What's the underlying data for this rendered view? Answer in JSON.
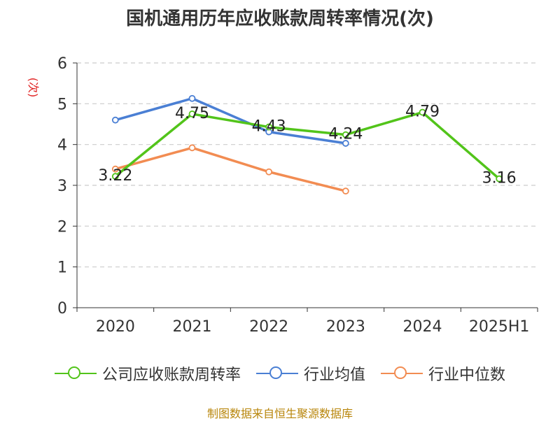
{
  "title": "国机通用历年应收账款周转率情况(次)",
  "source": "制图数据来自恒生聚源数据库",
  "chart_data": {
    "type": "line",
    "categories": [
      "2020",
      "2021",
      "2022",
      "2023",
      "2024",
      "2025H1"
    ],
    "ylabel": "(次)",
    "ylim": [
      0,
      6
    ],
    "yticks": [
      "0",
      "1",
      "2",
      "3",
      "4",
      "5",
      "6"
    ],
    "grid": true,
    "legend_position": "bottom",
    "series": [
      {
        "name": "公司应收账款周转率",
        "color": "#52c41a",
        "values": [
          3.22,
          4.75,
          4.43,
          4.24,
          4.79,
          3.16
        ],
        "labels": [
          "3.22",
          "4.75",
          "4.43",
          "4.24",
          "4.79",
          "3.16"
        ]
      },
      {
        "name": "行业均值",
        "color": "#4a7fd4",
        "values": [
          4.6,
          5.13,
          4.31,
          4.03,
          null,
          null
        ]
      },
      {
        "name": "行业中位数",
        "color": "#f28c52",
        "values": [
          3.4,
          3.92,
          3.33,
          2.86,
          null,
          null
        ]
      }
    ]
  }
}
